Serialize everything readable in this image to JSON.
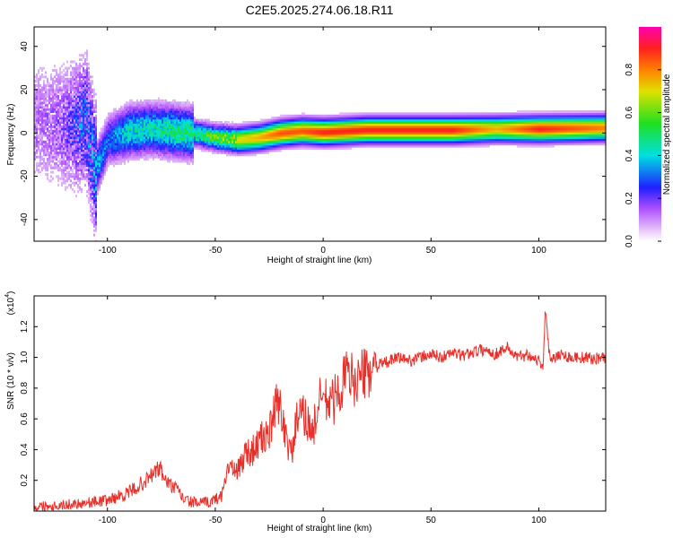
{
  "chart_data": [
    {
      "type": "heatmap",
      "title": "C2E5.2025.274.06.18.R11",
      "xlabel": "Height of straight line (km)",
      "ylabel": "Frequency (Hz)",
      "xlim": [
        -134,
        131
      ],
      "ylim": [
        -50,
        49
      ],
      "xticks": [
        -100,
        -50,
        0,
        50,
        100
      ],
      "xtick_labels": [
        "-100",
        "-50",
        "0",
        "50",
        "100"
      ],
      "yticks": [
        -40,
        -20,
        0,
        20,
        40
      ],
      "ytick_labels": [
        "-40",
        "-20",
        "0",
        "20",
        "40"
      ],
      "ridge": {
        "x": [
          -130,
          -120,
          -114,
          -110,
          -106,
          -100,
          -90,
          -80,
          -70,
          -60,
          -50,
          -40,
          -30,
          -20,
          -10,
          0,
          10,
          20,
          40,
          60,
          80,
          100,
          131
        ],
        "y": [
          5,
          3,
          4,
          6,
          -18,
          -3,
          1,
          2,
          1,
          0,
          -2,
          -3,
          -2,
          0,
          1,
          0.5,
          1,
          1.5,
          1.5,
          1.5,
          2,
          2,
          2.5
        ],
        "amplitude": [
          0.15,
          0.2,
          0.3,
          0.35,
          0.4,
          0.3,
          0.45,
          0.45,
          0.5,
          0.5,
          0.6,
          0.7,
          0.75,
          0.85,
          0.85,
          0.9,
          0.9,
          0.9,
          0.9,
          0.9,
          0.75,
          0.9,
          0.8
        ]
      },
      "colorbar": {
        "label": "Normalized spectral amplitude",
        "range": [
          0,
          1
        ],
        "ticks": [
          0.0,
          0.2,
          0.4,
          0.6,
          0.8
        ],
        "tick_labels": [
          "0.0",
          "0.2",
          "0.4",
          "0.6",
          "0.8"
        ]
      }
    },
    {
      "type": "line",
      "xlabel": "Height of straight line (km)",
      "ylabel": "SNR (10 * v/v)",
      "scale_note": "(x10",
      "scale_exponent": "4",
      "xlim": [
        -134,
        131
      ],
      "ylim": [
        0,
        1.4
      ],
      "xticks": [
        -100,
        -50,
        0,
        50,
        100
      ],
      "xtick_labels": [
        "-100",
        "-50",
        "0",
        "50",
        "100"
      ],
      "yticks": [
        0.2,
        0.4,
        0.6,
        0.8,
        1.0,
        1.2
      ],
      "ytick_labels": [
        "0.2",
        "0.4",
        "0.6",
        "0.8",
        "1.0",
        "1.2"
      ],
      "series": [
        {
          "name": "SNR",
          "color": "#e8302a",
          "x": [
            -134,
            -120,
            -100,
            -90,
            -82,
            -76,
            -72,
            -68,
            -64,
            -58,
            -52,
            -47,
            -44,
            -40,
            -36,
            -32,
            -28,
            -25,
            -21,
            -18,
            -15,
            -12,
            -8,
            -5,
            -2,
            0,
            2,
            5,
            8,
            11,
            14,
            18,
            22,
            26,
            30,
            35,
            40,
            45,
            50,
            55,
            60,
            65,
            70,
            75,
            80,
            85,
            90,
            95,
            100,
            102,
            103,
            105,
            110,
            115,
            120,
            125,
            131
          ],
          "y": [
            0.03,
            0.04,
            0.07,
            0.12,
            0.2,
            0.28,
            0.18,
            0.14,
            0.07,
            0.05,
            0.06,
            0.1,
            0.3,
            0.25,
            0.38,
            0.4,
            0.48,
            0.5,
            0.72,
            0.55,
            0.35,
            0.6,
            0.62,
            0.5,
            0.7,
            0.75,
            0.7,
            0.72,
            0.8,
            0.9,
            0.85,
            0.88,
            0.92,
            0.95,
            0.97,
            1.0,
            0.98,
            1.0,
            1.02,
            1.0,
            1.03,
            1.01,
            1.04,
            1.05,
            1.02,
            1.07,
            1.0,
            1.02,
            0.98,
            0.95,
            1.3,
            1.0,
            1.02,
            1.0,
            1.0,
            0.99,
            1.0
          ]
        }
      ]
    }
  ]
}
